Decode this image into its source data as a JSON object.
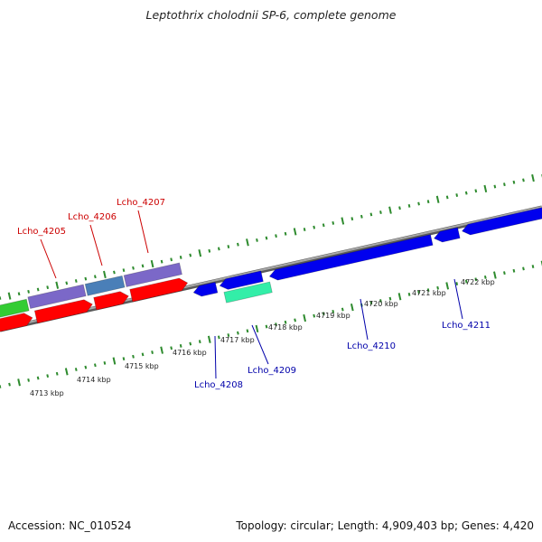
{
  "header": {
    "title": "Leptothrix cholodnii SP-6, complete genome"
  },
  "footer": {
    "accession": "Accession: NC_010524",
    "summary": "Topology: circular; Length: 4,909,403 bp; Genes: 4,420"
  },
  "colors": {
    "backbone": "#8a8a8a",
    "tick": "#2e8b2e",
    "gene_red": "#ff0000",
    "gene_green": "#33cc33",
    "gene_purple": "#7b68c8",
    "gene_steelblue": "#4a7fb8",
    "gene_blue": "#0000ee",
    "gene_teal": "#33eea8",
    "label_red": "#cc0000",
    "label_blue": "#0000aa"
  },
  "ruler_labels": [
    "4713 kbp",
    "4714 kbp",
    "4715 kbp",
    "4716 kbp",
    "4717 kbp",
    "4718 kbp",
    "4719 kbp",
    "4720 kbp",
    "4721 kbp",
    "4722 kbp"
  ],
  "gene_labels": [
    {
      "text": "Lcho_4205",
      "color": "label_red"
    },
    {
      "text": "Lcho_4206",
      "color": "label_red"
    },
    {
      "text": "Lcho_4207",
      "color": "label_red"
    },
    {
      "text": "Lcho_4208",
      "color": "label_blue"
    },
    {
      "text": "Lcho_4209",
      "color": "label_blue"
    },
    {
      "text": "Lcho_4210",
      "color": "label_blue"
    },
    {
      "text": "Lcho_4211",
      "color": "label_blue"
    }
  ]
}
